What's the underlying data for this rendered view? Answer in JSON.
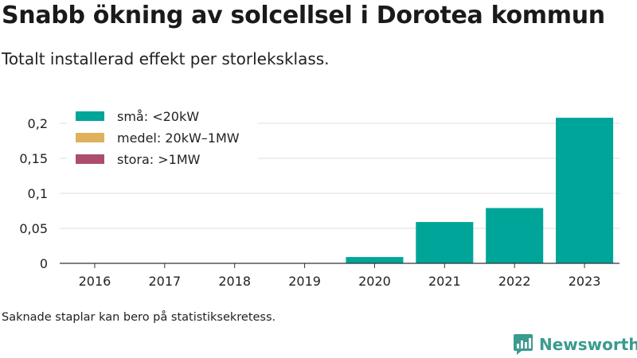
{
  "title": "Snabb ökning av solcellsel i Dorotea kommun",
  "subtitle": "Totalt installerad effekt per storleksklass.",
  "note": "Saknade staplar kan bero på statistiksekretess.",
  "brand": {
    "name": "Newsworthy",
    "icon": "newsworthy-logo-icon",
    "color": "#3a9b8e"
  },
  "chart_data": {
    "type": "bar",
    "stacked": true,
    "categories": [
      "2016",
      "2017",
      "2018",
      "2019",
      "2020",
      "2021",
      "2022",
      "2023"
    ],
    "series": [
      {
        "name": "små: <20kW",
        "color": "#00a59a",
        "values": [
          0,
          0,
          0,
          0,
          0.009,
          0.059,
          0.079,
          0.208
        ]
      },
      {
        "name": "medel: 20kW–1MW",
        "color": "#dfb15a",
        "values": [
          0,
          0,
          0,
          0,
          0,
          0,
          0,
          0
        ]
      },
      {
        "name": "stora: >1MW",
        "color": "#ac4d6e",
        "values": [
          0,
          0,
          0,
          0,
          0,
          0,
          0,
          0
        ]
      }
    ],
    "yticks": [
      0,
      0.05,
      0.1,
      0.15,
      0.2
    ],
    "ytick_labels": [
      "0",
      "0,05",
      "0,1",
      "0,15",
      "0,2"
    ],
    "ylim": [
      0,
      0.2
    ],
    "grid": true,
    "legend_position": "top-left",
    "xlabel": "",
    "ylabel": ""
  }
}
